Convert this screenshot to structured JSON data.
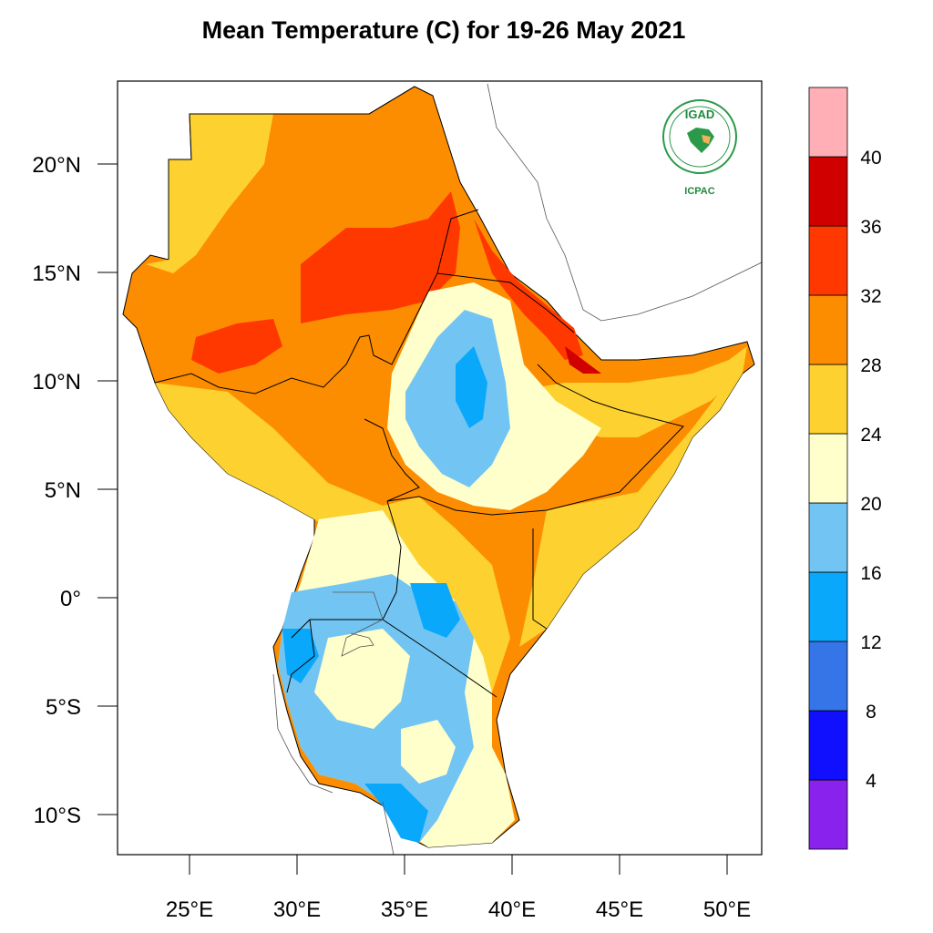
{
  "title": "Mean Temperature (C) for 19-26 May 2021",
  "logo": {
    "top": "IGAD",
    "bottom": "ICPAC",
    "color": "#1e8a3c"
  },
  "axes": {
    "lat_ticks": [
      {
        "value": 20,
        "label": "20°N"
      },
      {
        "value": 15,
        "label": "15°N"
      },
      {
        "value": 10,
        "label": "10°N"
      },
      {
        "value": 5,
        "label": "5°N"
      },
      {
        "value": 0,
        "label": "0°"
      },
      {
        "value": -5,
        "label": "5°S"
      },
      {
        "value": -10,
        "label": "10°S"
      }
    ],
    "lon_ticks": [
      {
        "value": 25,
        "label": "25°E"
      },
      {
        "value": 30,
        "label": "30°E"
      },
      {
        "value": 35,
        "label": "35°E"
      },
      {
        "value": 40,
        "label": "40°E"
      },
      {
        "value": 45,
        "label": "45°E"
      },
      {
        "value": 50,
        "label": "50°E"
      }
    ]
  },
  "colorbar": {
    "unit": "C",
    "colors": [
      "#8a22ee",
      "#1010ff",
      "#3575e8",
      "#0aa8fa",
      "#72c5f3",
      "#ffffcc",
      "#fdd12f",
      "#fd8d00",
      "#ff3800",
      "#d00000",
      "#ffafb5"
    ],
    "labels": [
      "4",
      "8",
      "12",
      "16",
      "20",
      "24",
      "28",
      "32",
      "36",
      "40"
    ]
  }
}
